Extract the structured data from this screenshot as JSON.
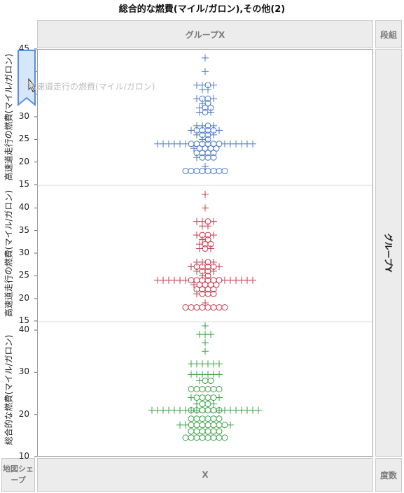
{
  "title": "総合的な燃費(マイル/ガロン),その他(2)",
  "zones": {
    "group_x": "グループX",
    "wrap": "段組",
    "group_y": "グループY",
    "map_shape": "地図シェープ",
    "x": "X",
    "freq": "度数"
  },
  "ghost_label": "高速道走行の燃費(マイル/ガロン)",
  "colors": {
    "blue": "#4a78c8",
    "red": "#c8384c",
    "green": "#3aa046"
  },
  "chart_data": {
    "type": "scatter",
    "panels": [
      {
        "ylabel": "高速道走行の燃費(マイル/ガロン)",
        "ylim": [
          15,
          45
        ],
        "ticks": [
          "45",
          "40",
          "35",
          "30",
          "25",
          "20",
          "15"
        ],
        "color": "blue",
        "rows": [
          {
            "y": 43,
            "plus": 1,
            "circ": 0
          },
          {
            "y": 40,
            "plus": 1,
            "circ": 0
          },
          {
            "y": 37,
            "plus": 3,
            "circ": 1
          },
          {
            "y": 36,
            "plus": 2,
            "circ": 0
          },
          {
            "y": 34,
            "plus": 2,
            "circ": 2
          },
          {
            "y": 33,
            "plus": 1,
            "circ": 1
          },
          {
            "y": 32,
            "plus": 1,
            "circ": 2
          },
          {
            "y": 31,
            "plus": 2,
            "circ": 1
          },
          {
            "y": 28,
            "plus": 3,
            "circ": 1
          },
          {
            "y": 27,
            "plus": 2,
            "circ": 4
          },
          {
            "y": 26,
            "plus": 2,
            "circ": 2
          },
          {
            "y": 25,
            "plus": 1,
            "circ": 1
          },
          {
            "y": 24,
            "plus": 12,
            "circ": 6
          },
          {
            "y": 23,
            "plus": 1,
            "circ": 4
          },
          {
            "y": 22,
            "plus": 0,
            "circ": 4
          },
          {
            "y": 21,
            "plus": 1,
            "circ": 3
          },
          {
            "y": 19,
            "plus": 1,
            "circ": 0
          },
          {
            "y": 18,
            "plus": 0,
            "circ": 8
          }
        ]
      },
      {
        "ylabel": "高速道走行の燃費(マイル/ガロン)",
        "ylim": [
          15,
          45
        ],
        "ticks": [
          "40",
          "35",
          "30",
          "25",
          "20",
          "15"
        ],
        "color": "red",
        "rows": [
          {
            "y": 43,
            "plus": 1,
            "circ": 0
          },
          {
            "y": 40,
            "plus": 1,
            "circ": 0
          },
          {
            "y": 37,
            "plus": 3,
            "circ": 1
          },
          {
            "y": 36,
            "plus": 2,
            "circ": 0
          },
          {
            "y": 34,
            "plus": 2,
            "circ": 2
          },
          {
            "y": 33,
            "plus": 1,
            "circ": 1
          },
          {
            "y": 32,
            "plus": 1,
            "circ": 2
          },
          {
            "y": 31,
            "plus": 2,
            "circ": 1
          },
          {
            "y": 28,
            "plus": 3,
            "circ": 1
          },
          {
            "y": 27,
            "plus": 2,
            "circ": 4
          },
          {
            "y": 26,
            "plus": 2,
            "circ": 2
          },
          {
            "y": 25,
            "plus": 1,
            "circ": 1
          },
          {
            "y": 24,
            "plus": 12,
            "circ": 6
          },
          {
            "y": 23,
            "plus": 1,
            "circ": 4
          },
          {
            "y": 22,
            "plus": 0,
            "circ": 4
          },
          {
            "y": 21,
            "plus": 1,
            "circ": 3
          },
          {
            "y": 19,
            "plus": 1,
            "circ": 0
          },
          {
            "y": 18,
            "plus": 0,
            "circ": 8
          }
        ]
      },
      {
        "ylabel": "総合的な燃費(マイル/ガロン)",
        "ylim": [
          10,
          42
        ],
        "ticks": [
          "40",
          "30",
          "20",
          "10"
        ],
        "color": "green",
        "rows": [
          {
            "y": 41,
            "plus": 1,
            "circ": 0
          },
          {
            "y": 39,
            "plus": 3,
            "circ": 0
          },
          {
            "y": 37,
            "plus": 1,
            "circ": 0
          },
          {
            "y": 35,
            "plus": 1,
            "circ": 0
          },
          {
            "y": 32,
            "plus": 6,
            "circ": 0
          },
          {
            "y": 29.5,
            "plus": 6,
            "circ": 0
          },
          {
            "y": 28,
            "plus": 1,
            "circ": 2
          },
          {
            "y": 26,
            "plus": 0,
            "circ": 6
          },
          {
            "y": 24,
            "plus": 2,
            "circ": 4
          },
          {
            "y": 22.5,
            "plus": 2,
            "circ": 2
          },
          {
            "y": 21,
            "plus": 3,
            "circ": 3
          },
          {
            "y": 21,
            "plus": 14,
            "circ": 6
          },
          {
            "y": 19,
            "plus": 0,
            "circ": 6
          },
          {
            "y": 17.5,
            "plus": 3,
            "circ": 7
          },
          {
            "y": 16,
            "plus": 0,
            "circ": 6
          },
          {
            "y": 14.5,
            "plus": 0,
            "circ": 8
          }
        ]
      }
    ]
  }
}
